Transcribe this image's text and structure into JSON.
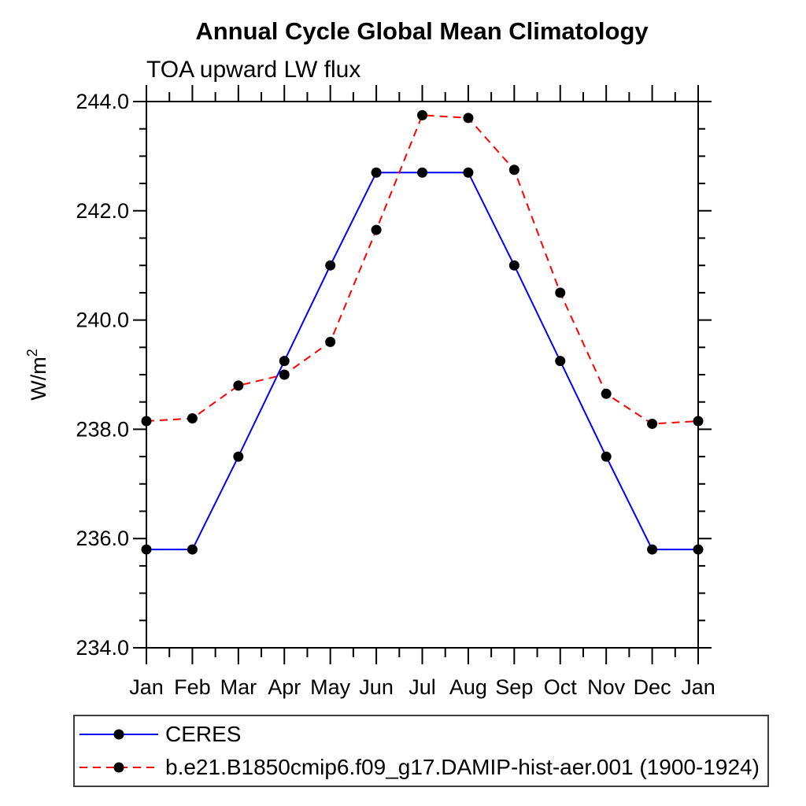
{
  "chart_data": {
    "type": "line",
    "title": "Annual Cycle Global Mean Climatology",
    "subtitle": "TOA upward LW flux",
    "ylabel": "W/m",
    "ylabel_superscript": "2",
    "x_categories": [
      "Jan",
      "Feb",
      "Mar",
      "Apr",
      "May",
      "Jun",
      "Jul",
      "Aug",
      "Sep",
      "Oct",
      "Nov",
      "Dec",
      "Jan"
    ],
    "ylim": [
      234.0,
      244.0
    ],
    "ytick_labels": [
      "234.0",
      "236.0",
      "238.0",
      "240.0",
      "242.0",
      "244.0"
    ],
    "ytick_interval": 2.0,
    "ytick_minor_interval": 0.5,
    "grid": false,
    "axis_color": "#000000",
    "background": "#ffffff",
    "legend_position": "bottom-left-box",
    "series": [
      {
        "name": "CERES",
        "color": "#0000ff",
        "line_style": "solid",
        "marker": "filled-circle",
        "marker_color": "#000000",
        "values": [
          235.8,
          235.8,
          237.5,
          239.25,
          241.0,
          242.7,
          242.7,
          242.7,
          241.0,
          239.25,
          237.5,
          235.8,
          235.8
        ]
      },
      {
        "name": "b.e21.B1850cmip6.f09_g17.DAMIP-hist-aer.001 (1900-1924)",
        "color": "#ff0000",
        "line_style": "dashed",
        "marker": "filled-circle",
        "marker_color": "#000000",
        "values": [
          238.15,
          238.2,
          238.8,
          239.0,
          239.6,
          241.65,
          243.75,
          243.7,
          242.75,
          240.5,
          238.65,
          238.1,
          238.15
        ]
      }
    ]
  }
}
